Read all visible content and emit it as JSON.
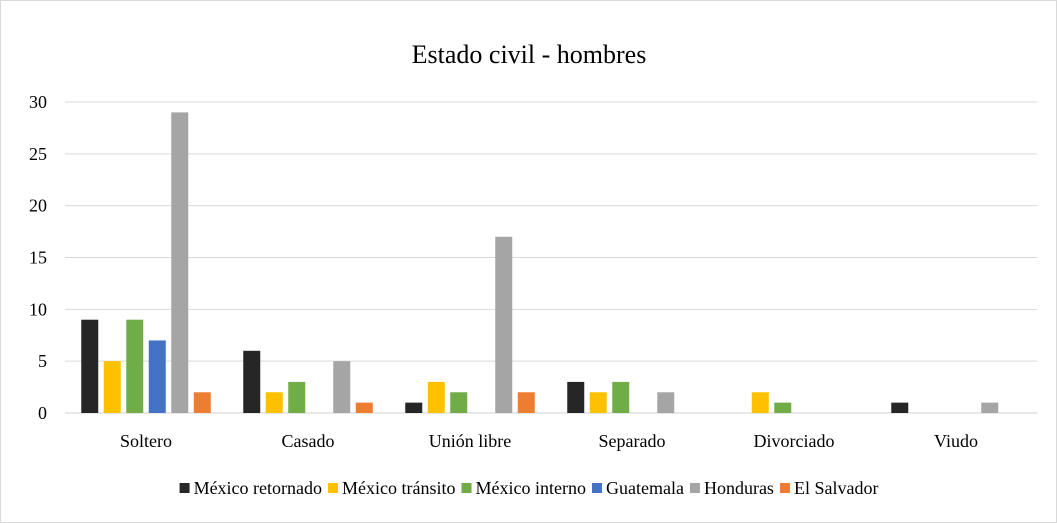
{
  "chart_data": {
    "type": "bar",
    "title": "Estado civil - hombres",
    "xlabel": "",
    "ylabel": "",
    "ylim": [
      0,
      30
    ],
    "yticks": [
      0,
      5,
      10,
      15,
      20,
      25,
      30
    ],
    "grid": true,
    "legend_position": "bottom",
    "categories": [
      "Soltero",
      "Casado",
      "Unión libre",
      "Separado",
      "Divorciado",
      "Viudo"
    ],
    "series": [
      {
        "name": "México retornado",
        "color": "#262626",
        "values": [
          9,
          6,
          1,
          3,
          0,
          1
        ]
      },
      {
        "name": "México tránsito",
        "color": "#ffc000",
        "values": [
          5,
          2,
          3,
          2,
          2,
          0
        ]
      },
      {
        "name": "México interno",
        "color": "#70ad47",
        "values": [
          9,
          3,
          2,
          3,
          1,
          0
        ]
      },
      {
        "name": "Guatemala",
        "color": "#4472c4",
        "values": [
          7,
          0,
          0,
          0,
          0,
          0
        ]
      },
      {
        "name": "Honduras",
        "color": "#a5a5a5",
        "values": [
          29,
          5,
          17,
          2,
          0,
          1
        ]
      },
      {
        "name": "El Salvador",
        "color": "#ed7d31",
        "values": [
          2,
          1,
          2,
          0,
          0,
          0
        ]
      }
    ]
  }
}
